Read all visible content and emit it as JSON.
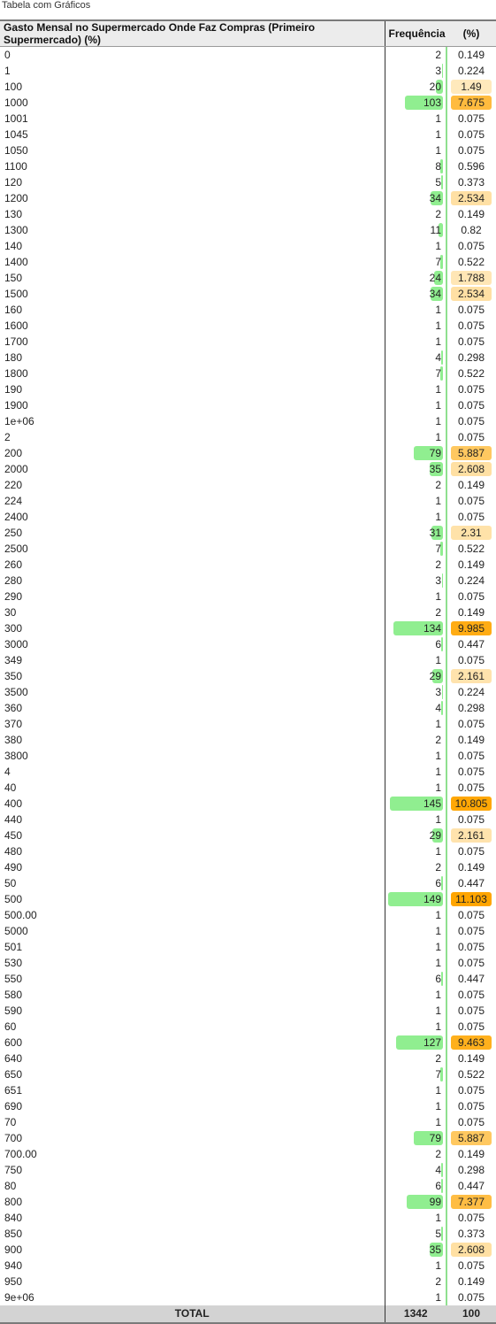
{
  "caption": "Tabela com Gráficos",
  "table": {
    "headers": {
      "label": "Gasto Mensal no Supermercado Onde Faz Compras (Primeiro Supermercado) (%)",
      "freq": "Frequência",
      "pct": "(%)"
    },
    "max_freq": 149,
    "rows": [
      {
        "label": "0",
        "freq": "2",
        "pct": "0.149"
      },
      {
        "label": "1",
        "freq": "3",
        "pct": "0.224"
      },
      {
        "label": "100",
        "freq": "20",
        "pct": "1.49"
      },
      {
        "label": "1000",
        "freq": "103",
        "pct": "7.675"
      },
      {
        "label": "1001",
        "freq": "1",
        "pct": "0.075"
      },
      {
        "label": "1045",
        "freq": "1",
        "pct": "0.075"
      },
      {
        "label": "1050",
        "freq": "1",
        "pct": "0.075"
      },
      {
        "label": "1100",
        "freq": "8",
        "pct": "0.596"
      },
      {
        "label": "120",
        "freq": "5",
        "pct": "0.373"
      },
      {
        "label": "1200",
        "freq": "34",
        "pct": "2.534"
      },
      {
        "label": "130",
        "freq": "2",
        "pct": "0.149"
      },
      {
        "label": "1300",
        "freq": "11",
        "pct": "0.82"
      },
      {
        "label": "140",
        "freq": "1",
        "pct": "0.075"
      },
      {
        "label": "1400",
        "freq": "7",
        "pct": "0.522"
      },
      {
        "label": "150",
        "freq": "24",
        "pct": "1.788"
      },
      {
        "label": "1500",
        "freq": "34",
        "pct": "2.534"
      },
      {
        "label": "160",
        "freq": "1",
        "pct": "0.075"
      },
      {
        "label": "1600",
        "freq": "1",
        "pct": "0.075"
      },
      {
        "label": "1700",
        "freq": "1",
        "pct": "0.075"
      },
      {
        "label": "180",
        "freq": "4",
        "pct": "0.298"
      },
      {
        "label": "1800",
        "freq": "7",
        "pct": "0.522"
      },
      {
        "label": "190",
        "freq": "1",
        "pct": "0.075"
      },
      {
        "label": "1900",
        "freq": "1",
        "pct": "0.075"
      },
      {
        "label": "1e+06",
        "freq": "1",
        "pct": "0.075"
      },
      {
        "label": "2",
        "freq": "1",
        "pct": "0.075"
      },
      {
        "label": "200",
        "freq": "79",
        "pct": "5.887"
      },
      {
        "label": "2000",
        "freq": "35",
        "pct": "2.608"
      },
      {
        "label": "220",
        "freq": "2",
        "pct": "0.149"
      },
      {
        "label": "224",
        "freq": "1",
        "pct": "0.075"
      },
      {
        "label": "2400",
        "freq": "1",
        "pct": "0.075"
      },
      {
        "label": "250",
        "freq": "31",
        "pct": "2.31"
      },
      {
        "label": "2500",
        "freq": "7",
        "pct": "0.522"
      },
      {
        "label": "260",
        "freq": "2",
        "pct": "0.149"
      },
      {
        "label": "280",
        "freq": "3",
        "pct": "0.224"
      },
      {
        "label": "290",
        "freq": "1",
        "pct": "0.075"
      },
      {
        "label": "30",
        "freq": "2",
        "pct": "0.149"
      },
      {
        "label": "300",
        "freq": "134",
        "pct": "9.985"
      },
      {
        "label": "3000",
        "freq": "6",
        "pct": "0.447"
      },
      {
        "label": "349",
        "freq": "1",
        "pct": "0.075"
      },
      {
        "label": "350",
        "freq": "29",
        "pct": "2.161"
      },
      {
        "label": "3500",
        "freq": "3",
        "pct": "0.224"
      },
      {
        "label": "360",
        "freq": "4",
        "pct": "0.298"
      },
      {
        "label": "370",
        "freq": "1",
        "pct": "0.075"
      },
      {
        "label": "380",
        "freq": "2",
        "pct": "0.149"
      },
      {
        "label": "3800",
        "freq": "1",
        "pct": "0.075"
      },
      {
        "label": "4",
        "freq": "1",
        "pct": "0.075"
      },
      {
        "label": "40",
        "freq": "1",
        "pct": "0.075"
      },
      {
        "label": "400",
        "freq": "145",
        "pct": "10.805"
      },
      {
        "label": "440",
        "freq": "1",
        "pct": "0.075"
      },
      {
        "label": "450",
        "freq": "29",
        "pct": "2.161"
      },
      {
        "label": "480",
        "freq": "1",
        "pct": "0.075"
      },
      {
        "label": "490",
        "freq": "2",
        "pct": "0.149"
      },
      {
        "label": "50",
        "freq": "6",
        "pct": "0.447"
      },
      {
        "label": "500",
        "freq": "149",
        "pct": "11.103"
      },
      {
        "label": "500.00",
        "freq": "1",
        "pct": "0.075"
      },
      {
        "label": "5000",
        "freq": "1",
        "pct": "0.075"
      },
      {
        "label": "501",
        "freq": "1",
        "pct": "0.075"
      },
      {
        "label": "530",
        "freq": "1",
        "pct": "0.075"
      },
      {
        "label": "550",
        "freq": "6",
        "pct": "0.447"
      },
      {
        "label": "580",
        "freq": "1",
        "pct": "0.075"
      },
      {
        "label": "590",
        "freq": "1",
        "pct": "0.075"
      },
      {
        "label": "60",
        "freq": "1",
        "pct": "0.075"
      },
      {
        "label": "600",
        "freq": "127",
        "pct": "9.463"
      },
      {
        "label": "640",
        "freq": "2",
        "pct": "0.149"
      },
      {
        "label": "650",
        "freq": "7",
        "pct": "0.522"
      },
      {
        "label": "651",
        "freq": "1",
        "pct": "0.075"
      },
      {
        "label": "690",
        "freq": "1",
        "pct": "0.075"
      },
      {
        "label": "70",
        "freq": "1",
        "pct": "0.075"
      },
      {
        "label": "700",
        "freq": "79",
        "pct": "5.887"
      },
      {
        "label": "700.00",
        "freq": "2",
        "pct": "0.149"
      },
      {
        "label": "750",
        "freq": "4",
        "pct": "0.298"
      },
      {
        "label": "80",
        "freq": "6",
        "pct": "0.447"
      },
      {
        "label": "800",
        "freq": "99",
        "pct": "7.377"
      },
      {
        "label": "840",
        "freq": "1",
        "pct": "0.075"
      },
      {
        "label": "850",
        "freq": "5",
        "pct": "0.373"
      },
      {
        "label": "900",
        "freq": "35",
        "pct": "2.608"
      },
      {
        "label": "940",
        "freq": "1",
        "pct": "0.075"
      },
      {
        "label": "950",
        "freq": "2",
        "pct": "0.149"
      },
      {
        "label": "9e+06",
        "freq": "1",
        "pct": "0.075"
      }
    ],
    "total": {
      "label": "TOTAL",
      "freq": "1342",
      "pct": "100"
    }
  },
  "colors": {
    "bar": "#90ee90",
    "pct_max": "#ffa500",
    "header_bg": "#ececec",
    "total_bg": "#d3d3d3"
  }
}
